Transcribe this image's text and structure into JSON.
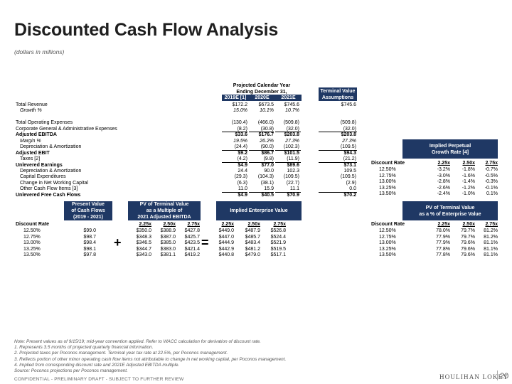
{
  "title": "Discounted Cash Flow Analysis",
  "subtitle": "(dollars in millions)",
  "projection_header": {
    "line1": "Projected Calendar Year",
    "line2": "Ending December 31,",
    "years": [
      "2019E [1]",
      "2020E",
      "2021E"
    ],
    "tv_header": [
      "Terminal Value",
      "Assumptions"
    ]
  },
  "income_rows": [
    {
      "label": "Total Revenue",
      "style": "normal",
      "values": [
        "$172.2",
        "$673.5",
        "$745.6"
      ],
      "tv": "$745.6",
      "uline": false
    },
    {
      "label": "Growth %",
      "style": "ital",
      "values": [
        "15.0%",
        "10.1%",
        "10.7%"
      ],
      "tv": "",
      "uline": false
    },
    {
      "label": "",
      "style": "spacer",
      "values": [
        "",
        "",
        ""
      ],
      "tv": "",
      "uline": false
    },
    {
      "label": "Total Operating Expenses",
      "style": "normal",
      "values": [
        "(130.4)",
        "(466.0)",
        "(509.8)"
      ],
      "tv": "(509.8)",
      "uline": false
    },
    {
      "label": "Corporate General & Administrative Expenses",
      "style": "normal",
      "values": [
        "(8.2)",
        "(30.8)",
        "(32.0)"
      ],
      "tv": "(32.0)",
      "uline": true
    },
    {
      "label": "Adjusted EBITDA",
      "style": "bold",
      "values": [
        "$33.6",
        "$176.7",
        "$203.8"
      ],
      "tv": "$203.8",
      "uline": false
    },
    {
      "label": "Margin %",
      "style": "ital",
      "values": [
        "19.5%",
        "26.2%",
        "27.3%"
      ],
      "tv": "27.3%",
      "uline": false
    },
    {
      "label": "Depreciation & Amortization",
      "style": "indent",
      "values": [
        "(24.4)",
        "(90.0)",
        "(102.3)"
      ],
      "tv": "(109.5)",
      "uline": true
    },
    {
      "label": "Adjusted EBIT",
      "style": "bold",
      "values": [
        "$9.2",
        "$86.7",
        "$101.5"
      ],
      "tv": "$94.3",
      "uline": false
    },
    {
      "label": "Taxes [2]",
      "style": "indent",
      "values": [
        "(4.2)",
        "(9.8)",
        "(11.9)"
      ],
      "tv": "(21.2)",
      "uline": true
    },
    {
      "label": "Unlevered Earnings",
      "style": "bold",
      "values": [
        "$4.9",
        "$77.0",
        "$89.6"
      ],
      "tv": "$73.1",
      "uline": false
    },
    {
      "label": "Depreciation & Amortization",
      "style": "indent",
      "values": [
        "24.4",
        "90.0",
        "102.3"
      ],
      "tv": "109.5",
      "uline": false
    },
    {
      "label": "Capital Expenditures",
      "style": "indent",
      "values": [
        "(29.3)",
        "(104.3)",
        "(109.5)"
      ],
      "tv": "(109.5)",
      "uline": false
    },
    {
      "label": "Change in Net Working Capital",
      "style": "indent",
      "values": [
        "(6.3)",
        "(38.1)",
        "(22.7)"
      ],
      "tv": "(2.9)",
      "uline": false
    },
    {
      "label": "Other Cash Flow Items [3]",
      "style": "indent",
      "values": [
        "11.0",
        "15.9",
        "11.1"
      ],
      "tv": "0.0",
      "uline": true
    },
    {
      "label": "Unlevered Free Cash Flows",
      "style": "bold",
      "values": [
        "$4.9",
        "$40.5",
        "$70.9"
      ],
      "tv": "$70.2",
      "uline": false
    }
  ],
  "perpetual": {
    "header": [
      "Implied Perpetual",
      "Growth Rate [4]"
    ],
    "rate_label": "Discount Rate",
    "multiples": [
      "2.25x",
      "2.50x",
      "2.75x"
    ],
    "rows": [
      {
        "rate": "12.50%",
        "values": [
          "-3.2%",
          "-1.8%",
          "-0.7%"
        ]
      },
      {
        "rate": "12.75%",
        "values": [
          "-3.0%",
          "-1.6%",
          "-0.5%"
        ]
      },
      {
        "rate": "13.00%",
        "values": [
          "-2.8%",
          "-1.4%",
          "-0.3%"
        ]
      },
      {
        "rate": "13.25%",
        "values": [
          "-2.6%",
          "-1.2%",
          "-0.1%"
        ]
      },
      {
        "rate": "13.50%",
        "values": [
          "-2.4%",
          "-1.0%",
          "0.1%"
        ]
      }
    ]
  },
  "bottom_headers": {
    "pv_cf": [
      "Present Value",
      "of Cash Flows",
      "(2019 - 2021)"
    ],
    "pv_tv": [
      "PV of Terminal Value",
      "as a Multiple of",
      "2021 Adjusted EBITDA"
    ],
    "iev": [
      "Implied Enterprise Value"
    ],
    "pct": [
      "PV of Terminal Value",
      "as a % of Enterprise Value"
    ]
  },
  "bottom_table": {
    "rate_label": "Discount Rate",
    "multiples": [
      "2.25x",
      "2.50x",
      "2.75x"
    ],
    "plus": "+",
    "equals": "=",
    "rows": [
      {
        "rate": "12.50%",
        "pv_cf": "$99.0",
        "pv_tv": [
          "$350.0",
          "$388.9",
          "$427.8"
        ],
        "iev": [
          "$449.0",
          "$487.9",
          "$526.8"
        ],
        "pct": [
          "78.0%",
          "79.7%",
          "81.2%"
        ]
      },
      {
        "rate": "12.75%",
        "pv_cf": "$98.7",
        "pv_tv": [
          "$348.3",
          "$387.0",
          "$425.7"
        ],
        "iev": [
          "$447.0",
          "$485.7",
          "$524.4"
        ],
        "pct": [
          "77.9%",
          "79.7%",
          "81.2%"
        ]
      },
      {
        "rate": "13.00%",
        "pv_cf": "$98.4",
        "pv_tv": [
          "$346.5",
          "$385.0",
          "$423.5"
        ],
        "iev": [
          "$444.9",
          "$483.4",
          "$521.9"
        ],
        "pct": [
          "77.9%",
          "79.6%",
          "81.1%"
        ]
      },
      {
        "rate": "13.25%",
        "pv_cf": "$98.1",
        "pv_tv": [
          "$344.7",
          "$383.0",
          "$421.4"
        ],
        "iev": [
          "$442.9",
          "$481.2",
          "$519.5"
        ],
        "pct": [
          "77.8%",
          "79.6%",
          "81.1%"
        ]
      },
      {
        "rate": "13.50%",
        "pv_cf": "$97.8",
        "pv_tv": [
          "$343.0",
          "$381.1",
          "$419.2"
        ],
        "iev": [
          "$440.8",
          "$479.0",
          "$517.1"
        ],
        "pct": [
          "77.8%",
          "79.6%",
          "81.1%"
        ]
      }
    ]
  },
  "notes": [
    "Note: Present values as of 9/15/19; mid-year convention applied. Refer to WACC calculation for derivation of discount rate.",
    "1.  Represents 3.5 months of projected quarterly financial information.",
    "2.  Projected taxes per Poconos management. Terminal year tax rate at 22.5%, per Poconos management.",
    "3.  Reflects portion of other minor operating cash flow items not attributable to change in net working capital, per Poconos management.",
    "4.  Implied from corresponding discount rate and 2021E Adjusted EBITDA multiple.",
    "Source: Poconos projections per Poconos management."
  ],
  "footer": "CONFIDENTIAL - PRELIMINARY DRAFT - SUBJECT TO FURTHER REVIEW",
  "brand": "HOULIHAN LOKEY",
  "page_number": "20",
  "colors": {
    "header_fill": "#1f3864",
    "year_fill": "#1f3864"
  }
}
